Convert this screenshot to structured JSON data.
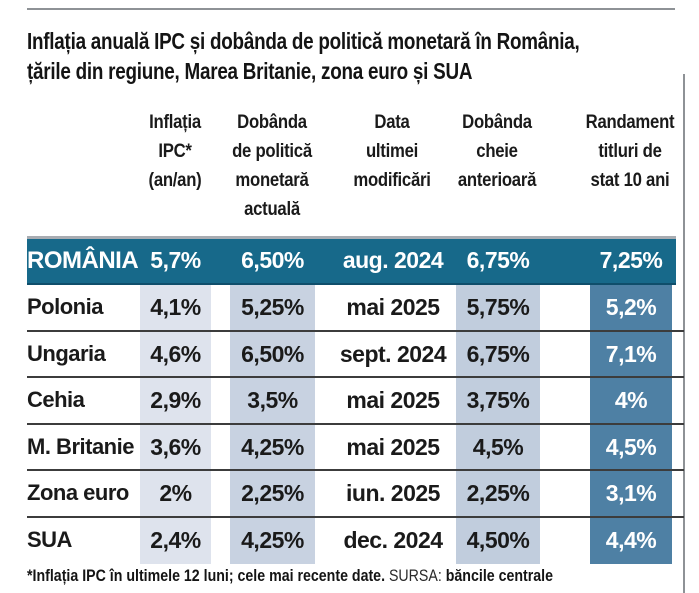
{
  "title": {
    "line1": "Inflația anuală IPC și dobânda de politică monetară în România,",
    "line2": "țările din regiune, Marea Britanie, zona euro și SUA"
  },
  "chart_data": {
    "type": "table",
    "title": "Inflația anuală IPC și dobânda de politică monetară în România, țările din regiune, Marea Britanie, zona euro și SUA",
    "headers": [
      {
        "id": "inflation",
        "label": "Inflația\nIPC*\n(an/an)"
      },
      {
        "id": "policy_rate",
        "label": "Dobânda\nde politică\nmonetară\nactuală"
      },
      {
        "id": "last_change",
        "label": "Data\nultimei\nmodificări"
      },
      {
        "id": "prev_rate",
        "label": "Dobânda\ncheie\nanterioară"
      },
      {
        "id": "yield10y",
        "label": "Randament\ntitluri de\nstat 10 ani"
      }
    ],
    "rows": [
      {
        "country": "ROMÂNIA",
        "inflation": "5,7%",
        "policy_rate": "6,50%",
        "last_change": "aug. 2024",
        "prev_rate": "6,75%",
        "yield10y": "7,25%",
        "highlighted": true
      },
      {
        "country": "Polonia",
        "inflation": "4,1%",
        "policy_rate": "5,25%",
        "last_change": "mai 2025",
        "prev_rate": "5,75%",
        "yield10y": "5,2%",
        "highlighted": false
      },
      {
        "country": "Ungaria",
        "inflation": "4,6%",
        "policy_rate": "6,50%",
        "last_change": "sept. 2024",
        "prev_rate": "6,75%",
        "yield10y": "7,1%",
        "highlighted": false
      },
      {
        "country": "Cehia",
        "inflation": "2,9%",
        "policy_rate": "3,5%",
        "last_change": "mai 2025",
        "prev_rate": "3,75%",
        "yield10y": "4%",
        "highlighted": false
      },
      {
        "country": "M. Britanie",
        "inflation": "3,6%",
        "policy_rate": "4,25%",
        "last_change": "mai 2025",
        "prev_rate": "4,5%",
        "yield10y": "4,5%",
        "highlighted": false
      },
      {
        "country": "Zona euro",
        "inflation": "2%",
        "policy_rate": "2,25%",
        "last_change": "iun. 2025",
        "prev_rate": "2,25%",
        "yield10y": "3,1%",
        "highlighted": false
      },
      {
        "country": "SUA",
        "inflation": "2,4%",
        "policy_rate": "4,25%",
        "last_change": "dec. 2024",
        "prev_rate": "4,50%",
        "yield10y": "4,4%",
        "highlighted": false
      }
    ]
  },
  "footnote": {
    "note": "*Inflația IPC în ultimele 12 luni; cele mai recente date.",
    "source_label": " SURSA: ",
    "source_value": "băncile centrale"
  },
  "colors": {
    "highlight_row_bg": "#17698a",
    "band_inflation": "#dee3ed",
    "band_policy_rate": "#c8d2e1",
    "band_prev_rate": "#c1cddd",
    "band_yield": "#4e80a4",
    "rule": "#8e9296",
    "row_separator": "#3c3c3c"
  }
}
